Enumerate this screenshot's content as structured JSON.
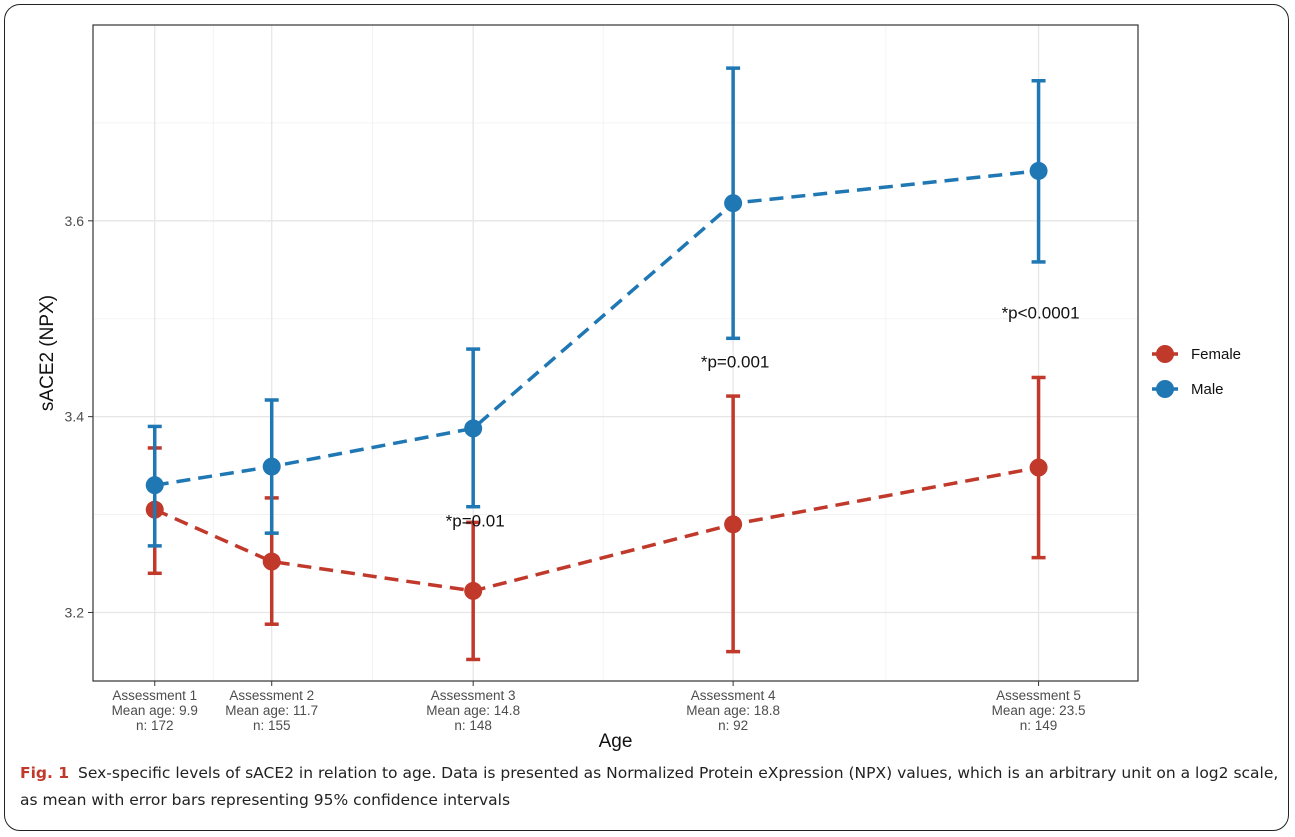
{
  "figure": {
    "caption_label": "Fig. 1",
    "caption_text": "Sex-specific levels of sACE2 in relation to age. Data is presented as Normalized Protein eXpression (NPX) values, which is an arbitrary unit on a log2 scale, as mean with error bars representing 95% confidence intervals"
  },
  "chart_data": {
    "type": "line",
    "title": "",
    "xlabel": "Age",
    "ylabel": "sACE2 (NPX)",
    "ylim": [
      3.13,
      3.8
    ],
    "yticks": [
      3.2,
      3.4,
      3.6
    ],
    "grid": true,
    "legend_position": "right",
    "x": [
      9.9,
      11.7,
      14.8,
      18.8,
      23.5
    ],
    "categories": [
      [
        "Assessment  1",
        "Mean age:  9.9",
        "n:  172"
      ],
      [
        "Assessment  2",
        "Mean age:  11.7",
        "n:  155"
      ],
      [
        "Assessment  3",
        "Mean age:  14.8",
        "n:  148"
      ],
      [
        "Assessment  4",
        "Mean age:  18.8",
        "n:  92"
      ],
      [
        "Assessment  5",
        "Mean age:  23.5",
        "n:  149"
      ]
    ],
    "series": [
      {
        "name": "Female",
        "color": "#c0392b",
        "values": [
          3.305,
          3.252,
          3.222,
          3.29,
          3.348
        ],
        "ci_low": [
          3.24,
          3.188,
          3.152,
          3.16,
          3.256
        ],
        "ci_high": [
          3.368,
          3.317,
          3.292,
          3.421,
          3.44
        ]
      },
      {
        "name": "Male",
        "color": "#1f77b4",
        "values": [
          3.33,
          3.349,
          3.388,
          3.618,
          3.651
        ],
        "ci_low": [
          3.268,
          3.281,
          3.308,
          3.48,
          3.558
        ],
        "ci_high": [
          3.39,
          3.417,
          3.469,
          3.756,
          3.743
        ]
      }
    ],
    "annotations": [
      {
        "text": "*p=0.01",
        "x": 14.8,
        "y": 3.288
      },
      {
        "text": "*p=0.001",
        "x": 18.8,
        "y": 3.45
      },
      {
        "text": "*p<0.0001",
        "x": 23.5,
        "y": 3.5
      }
    ]
  }
}
